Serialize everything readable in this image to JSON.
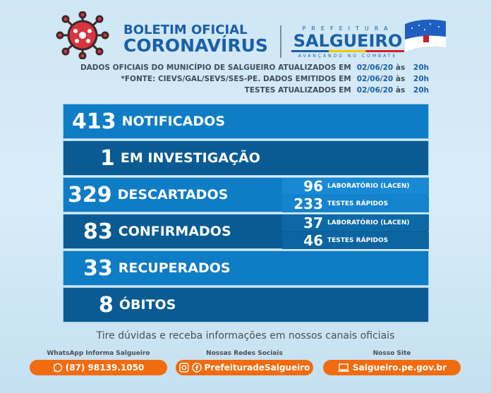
{
  "header": {
    "title_line1": "BOLETIM OFICIAL",
    "title_line2": "CORONAVÍRUS",
    "pref_label": "PREFEITURA",
    "city": "SALGUEIRO",
    "slogan": "AVANÇANDO NO COMBATE"
  },
  "info": [
    {
      "text": "DADOS OFICIAIS DO MUNICÍPIO DE SALGUEIRO ATUALIZADOS EM",
      "date": "02/06/20",
      "as": "às",
      "time": "20h"
    },
    {
      "text": "*FONTE: CIEVS/GAL/SEVS/SES-PE. DADOS EMITIDOS EM",
      "date": "02/06/20",
      "as": "às",
      "time": "20h"
    },
    {
      "text": "TESTES ATUALIZADOS EM",
      "date": "02/06/20",
      "as": "às",
      "time": "20h"
    }
  ],
  "stats": {
    "notificados": {
      "value": "413",
      "label": "NOTIFICADOS"
    },
    "investigacao": {
      "value": "1",
      "label": "EM INVESTIGAÇÃO"
    },
    "descartados": {
      "value": "329",
      "label": "DESCARTADOS",
      "lab_value": "96",
      "lab_label": "LABORATÓRIO (LACEN)",
      "rapid_value": "233",
      "rapid_label": "TESTES RÁPIDOS"
    },
    "confirmados": {
      "value": "83",
      "label": "CONFIRMADOS",
      "lab_value": "37",
      "lab_label": "LABORATÓRIO (LACEN)",
      "rapid_value": "46",
      "rapid_label": "TESTES RÁPIDOS"
    },
    "recuperados": {
      "value": "33",
      "label": "RECUPERADOS"
    },
    "obitos": {
      "value": "8",
      "label": "ÓBITOS"
    }
  },
  "footer": {
    "tagline": "Tire dúvidas e receba informações em nossos canais oficiais",
    "whatsapp": {
      "heading": "WhatsApp Informa Salgueiro",
      "value": "(87) 98139.1050",
      "icon": "whatsapp-icon"
    },
    "social": {
      "heading": "Nossas Redes Sociais",
      "value": "PrefeituradeSalgueiro",
      "icons": [
        "instagram-icon",
        "facebook-icon"
      ]
    },
    "site": {
      "heading": "Nosso Site",
      "value": "Salgueiro.pe.gov.br",
      "icon": "laptop-icon"
    }
  },
  "colors": {
    "panel_light": "#0f7cc6",
    "panel_dark": "#0a5b93",
    "accent_orange": "#f26b0f",
    "brand_blue": "#1a5fa8",
    "virus_red": "#d9343f"
  }
}
